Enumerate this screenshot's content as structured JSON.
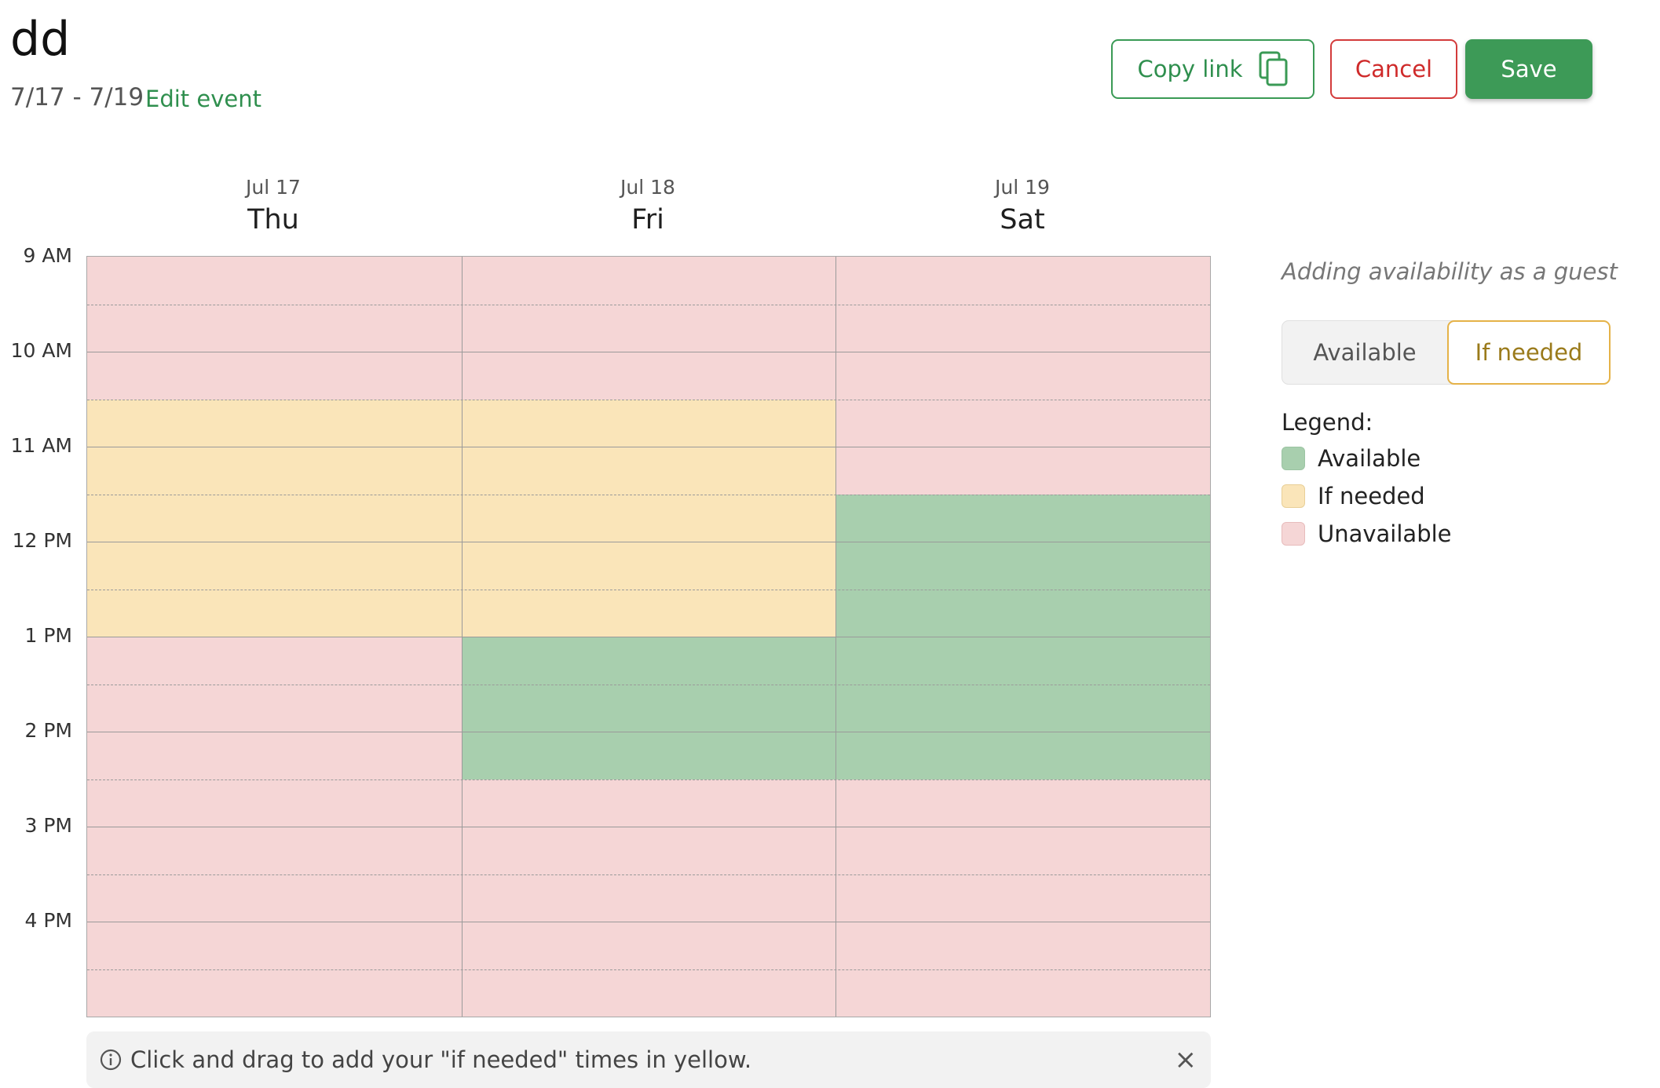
{
  "header": {
    "title": "dd",
    "date_range": "7/17 - 7/19",
    "edit_event_label": "Edit event",
    "copy_link_label": "Copy link",
    "cancel_label": "Cancel",
    "save_label": "Save"
  },
  "days": [
    {
      "date": "Jul 17",
      "name": "Thu"
    },
    {
      "date": "Jul 18",
      "name": "Fri"
    },
    {
      "date": "Jul 19",
      "name": "Sat"
    }
  ],
  "time_labels": [
    "9 AM",
    "10 AM",
    "11 AM",
    "12 PM",
    "1 PM",
    "2 PM",
    "3 PM",
    "4 PM"
  ],
  "slots_per_day": 16,
  "availability": [
    [
      "unavailable",
      "unavailable",
      "unavailable",
      "if_needed",
      "if_needed",
      "if_needed",
      "if_needed",
      "if_needed",
      "unavailable",
      "unavailable",
      "unavailable",
      "unavailable",
      "unavailable",
      "unavailable",
      "unavailable",
      "unavailable"
    ],
    [
      "unavailable",
      "unavailable",
      "unavailable",
      "if_needed",
      "if_needed",
      "if_needed",
      "if_needed",
      "if_needed",
      "available",
      "available",
      "available",
      "unavailable",
      "unavailable",
      "unavailable",
      "unavailable",
      "unavailable"
    ],
    [
      "unavailable",
      "unavailable",
      "unavailable",
      "unavailable",
      "unavailable",
      "available",
      "available",
      "available",
      "available",
      "available",
      "available",
      "unavailable",
      "unavailable",
      "unavailable",
      "unavailable",
      "unavailable"
    ]
  ],
  "info_bar": {
    "text": "Click and drag to add your \"if needed\" times in yellow."
  },
  "side_panel": {
    "guest_note": "Adding availability as a guest",
    "toggle": {
      "available_label": "Available",
      "if_needed_label": "If needed",
      "selected": "If needed"
    },
    "legend_title": "Legend:",
    "legend": [
      {
        "label": "Available",
        "key": "available"
      },
      {
        "label": "If needed",
        "key": "if_needed"
      },
      {
        "label": "Unavailable",
        "key": "unavailable"
      }
    ]
  },
  "colors": {
    "available": "#a8cfae",
    "if_needed": "#fae5b9",
    "unavailable": "#f5d6d6",
    "accent_green": "#3d9a57",
    "cancel_red": "#cf2a2a"
  }
}
